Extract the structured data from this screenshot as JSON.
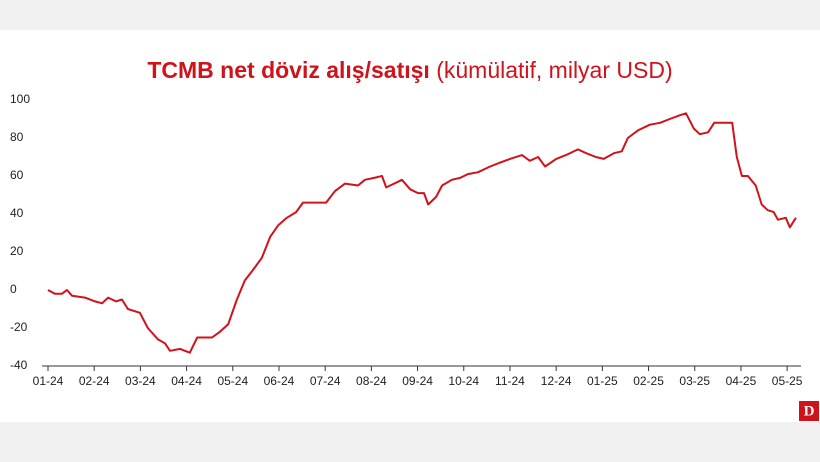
{
  "chart_data": {
    "type": "line",
    "title": "TCMB net döviz alış/satışı",
    "subtitle": "(kümülatif, milyar USD)",
    "logo": "D",
    "x": [
      0,
      0.15,
      0.3,
      0.41,
      0.52,
      0.8,
      1.02,
      1.17,
      1.3,
      1.47,
      1.6,
      1.73,
      1.99,
      2.16,
      2.38,
      2.53,
      2.64,
      2.86,
      3.07,
      3.23,
      3.55,
      3.72,
      3.9,
      4.09,
      4.26,
      4.42,
      4.63,
      4.81,
      4.98,
      5.17,
      5.37,
      5.52,
      5.84,
      6.02,
      6.21,
      6.43,
      6.71,
      6.86,
      7.06,
      7.23,
      7.32,
      7.58,
      7.66,
      7.84,
      8.01,
      8.14,
      8.23,
      8.4,
      8.53,
      8.74,
      8.92,
      9.09,
      9.31,
      9.57,
      9.78,
      10,
      10.26,
      10.43,
      10.61,
      10.76,
      11,
      11.21,
      11.47,
      11.65,
      11.86,
      12.03,
      12.25,
      12.42,
      12.55,
      12.77,
      13.03,
      13.25,
      13.46,
      13.68,
      13.81,
      13.98,
      14.11,
      14.29,
      14.42,
      14.59,
      14.81,
      14.91,
      15.02,
      15.15,
      15.32,
      15.45,
      15.58,
      15.71,
      15.8,
      15.97,
      16.06,
      16.19
    ],
    "series": [
      {
        "color": "#d0121b",
        "values": [
          0,
          -2,
          -2,
          0,
          -3,
          -4,
          -6,
          -7,
          -4,
          -6,
          -5,
          -10,
          -12,
          -20,
          -26,
          -28,
          -32,
          -31,
          -33,
          -25,
          -25,
          -22,
          -18,
          -5,
          5,
          10,
          17,
          28,
          34,
          38,
          41,
          46,
          46,
          46,
          52,
          56,
          55,
          58,
          59,
          60,
          54,
          57,
          58,
          53,
          51,
          51,
          45,
          49,
          55,
          58,
          59,
          61,
          62,
          65,
          67,
          69,
          71,
          68,
          70,
          65,
          69,
          71,
          74,
          72,
          70,
          69,
          72,
          73,
          80,
          84,
          87,
          88,
          90,
          92,
          93,
          85,
          82,
          83,
          88,
          88,
          88,
          70,
          60,
          60,
          55,
          45,
          42,
          41,
          37,
          38,
          33,
          38
        ]
      }
    ],
    "xlim": [
      -0.13,
      16.3
    ],
    "xticks": [
      {
        "value": 0,
        "label": "01-24"
      },
      {
        "value": 1,
        "label": "02-24"
      },
      {
        "value": 2,
        "label": "03-24"
      },
      {
        "value": 3,
        "label": "04-24"
      },
      {
        "value": 4,
        "label": "05-24"
      },
      {
        "value": 5,
        "label": "06-24"
      },
      {
        "value": 6,
        "label": "07-24"
      },
      {
        "value": 7,
        "label": "08-24"
      },
      {
        "value": 8,
        "label": "09-24"
      },
      {
        "value": 9,
        "label": "10-24"
      },
      {
        "value": 10,
        "label": "11-24"
      },
      {
        "value": 11,
        "label": "12-24"
      },
      {
        "value": 12,
        "label": "01-25"
      },
      {
        "value": 13,
        "label": "02-25"
      },
      {
        "value": 14,
        "label": "03-25"
      },
      {
        "value": 15,
        "label": "04-25"
      },
      {
        "value": 16,
        "label": "05-25"
      }
    ],
    "ylim": [
      -40,
      100
    ],
    "yticks": [
      -40,
      -20,
      0,
      20,
      40,
      60,
      80,
      100
    ],
    "grid": false
  }
}
